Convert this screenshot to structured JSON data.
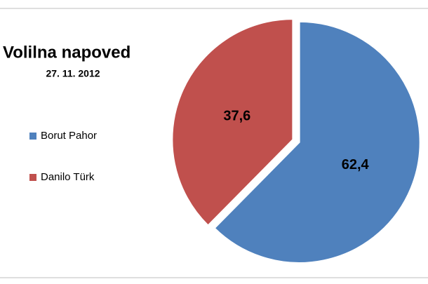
{
  "chart_data": {
    "type": "pie",
    "title": "Volilna napoved",
    "subtitle": "27. 11. 2012",
    "categories": [
      "Borut Pahor",
      "Danilo Türk"
    ],
    "values": [
      62.4,
      37.6
    ],
    "value_labels": [
      "62,4",
      "37,6"
    ],
    "colors": [
      "#4f81bd",
      "#c0504d"
    ],
    "legend": "left"
  }
}
